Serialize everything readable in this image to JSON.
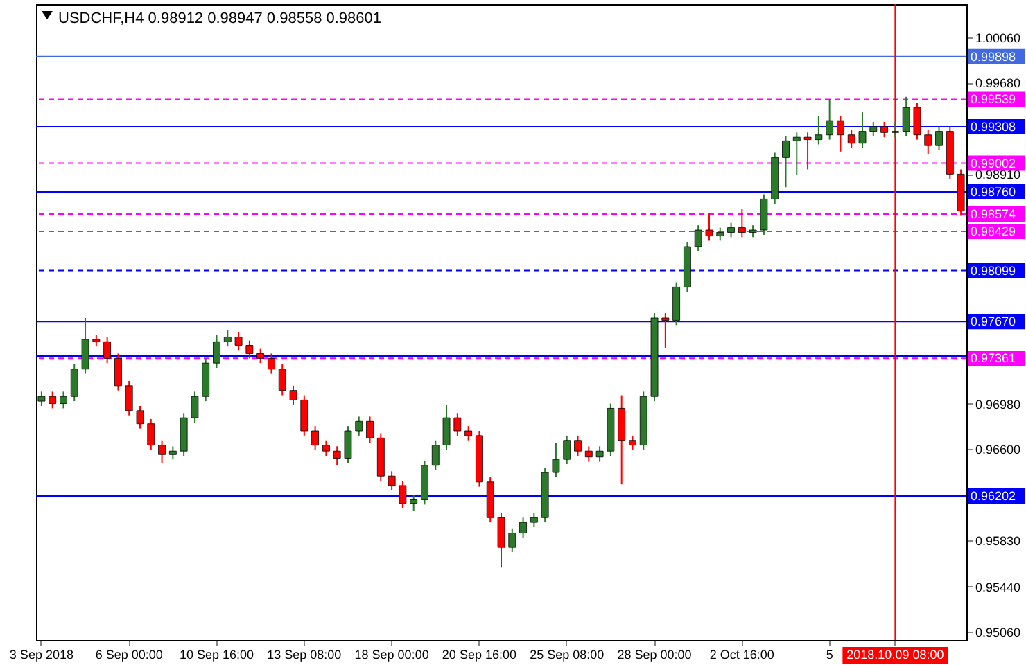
{
  "chart_data": {
    "type": "candlestick",
    "title": "USDCHF,H4  0.98912 0.98947 0.98558 0.98601",
    "categories": [
      "3 Sep 2018",
      null,
      null,
      null,
      null,
      null,
      null,
      null,
      "6 Sep 00:00",
      null,
      null,
      null,
      null,
      null,
      null,
      null,
      "10 Sep 16:00",
      null,
      null,
      null,
      null,
      null,
      null,
      null,
      "13 Sep 08:00",
      null,
      null,
      null,
      null,
      null,
      null,
      null,
      "18 Sep 00:00",
      null,
      null,
      null,
      null,
      null,
      null,
      null,
      "20 Sep 16:00",
      null,
      null,
      null,
      null,
      null,
      null,
      null,
      "25 Sep 08:00",
      null,
      null,
      null,
      null,
      null,
      null,
      null,
      "28 Sep 00:00",
      null,
      null,
      null,
      null,
      null,
      null,
      null,
      "2 Oct 16:00",
      null,
      null,
      null,
      null,
      null,
      null,
      null,
      "5",
      null,
      null,
      null,
      null,
      null,
      "2018.10.09 08:00",
      null,
      null,
      null,
      null,
      null,
      null
    ],
    "ohlc": [
      [
        0.97,
        0.9708,
        0.9696,
        0.9704
      ],
      [
        0.9704,
        0.9708,
        0.9694,
        0.9698
      ],
      [
        0.9698,
        0.9708,
        0.9694,
        0.9704
      ],
      [
        0.9704,
        0.9731,
        0.97,
        0.9727
      ],
      [
        0.9727,
        0.977,
        0.9723,
        0.9752
      ],
      [
        0.9752,
        0.9756,
        0.9746,
        0.975
      ],
      [
        0.975,
        0.9754,
        0.9732,
        0.9736
      ],
      [
        0.9736,
        0.974,
        0.9709,
        0.9713
      ],
      [
        0.9713,
        0.9717,
        0.9688,
        0.9692
      ],
      [
        0.9692,
        0.9696,
        0.9677,
        0.9681
      ],
      [
        0.9681,
        0.9685,
        0.9659,
        0.9663
      ],
      [
        0.9663,
        0.9667,
        0.9648,
        0.9655
      ],
      [
        0.9655,
        0.9662,
        0.9651,
        0.9658
      ],
      [
        0.9658,
        0.969,
        0.9654,
        0.9686
      ],
      [
        0.9686,
        0.9708,
        0.9682,
        0.9704
      ],
      [
        0.9704,
        0.9736,
        0.97,
        0.9732
      ],
      [
        0.9732,
        0.9756,
        0.9728,
        0.975
      ],
      [
        0.975,
        0.976,
        0.9746,
        0.9754
      ],
      [
        0.9754,
        0.9758,
        0.9743,
        0.9747
      ],
      [
        0.9747,
        0.9751,
        0.9736,
        0.974
      ],
      [
        0.974,
        0.9744,
        0.9732,
        0.9736
      ],
      [
        0.9736,
        0.974,
        0.9723,
        0.9727
      ],
      [
        0.9727,
        0.9731,
        0.9705,
        0.9709
      ],
      [
        0.9709,
        0.9713,
        0.9697,
        0.9701
      ],
      [
        0.9701,
        0.9705,
        0.9671,
        0.9675
      ],
      [
        0.9675,
        0.9679,
        0.9659,
        0.9663
      ],
      [
        0.9663,
        0.9667,
        0.9654,
        0.9658
      ],
      [
        0.9658,
        0.9662,
        0.9646,
        0.9652
      ],
      [
        0.9652,
        0.9679,
        0.9648,
        0.9675
      ],
      [
        0.9675,
        0.9687,
        0.9671,
        0.9683
      ],
      [
        0.9683,
        0.9687,
        0.9665,
        0.9669
      ],
      [
        0.9669,
        0.9673,
        0.9633,
        0.9637
      ],
      [
        0.9637,
        0.9641,
        0.9625,
        0.9629
      ],
      [
        0.9629,
        0.9633,
        0.961,
        0.9614
      ],
      [
        0.9614,
        0.9621,
        0.9608,
        0.9617
      ],
      [
        0.9617,
        0.965,
        0.9613,
        0.9646
      ],
      [
        0.9646,
        0.9667,
        0.9642,
        0.9663
      ],
      [
        0.9663,
        0.9697,
        0.9659,
        0.9686
      ],
      [
        0.9686,
        0.969,
        0.9671,
        0.9675
      ],
      [
        0.9675,
        0.9679,
        0.9667,
        0.9671
      ],
      [
        0.9671,
        0.9675,
        0.9628,
        0.9632
      ],
      [
        0.9632,
        0.9636,
        0.9598,
        0.9602
      ],
      [
        0.9602,
        0.9606,
        0.956,
        0.9577
      ],
      [
        0.9577,
        0.9593,
        0.9573,
        0.9589
      ],
      [
        0.9589,
        0.9602,
        0.9585,
        0.9598
      ],
      [
        0.9598,
        0.9606,
        0.9594,
        0.9602
      ],
      [
        0.9602,
        0.9644,
        0.9598,
        0.964
      ],
      [
        0.964,
        0.9665,
        0.9636,
        0.9651
      ],
      [
        0.9651,
        0.9671,
        0.9647,
        0.9667
      ],
      [
        0.9667,
        0.9671,
        0.9654,
        0.9658
      ],
      [
        0.9658,
        0.9662,
        0.9649,
        0.9653
      ],
      [
        0.9653,
        0.9662,
        0.9649,
        0.9658
      ],
      [
        0.9658,
        0.9698,
        0.9654,
        0.9694
      ],
      [
        0.9694,
        0.9705,
        0.963,
        0.9667
      ],
      [
        0.9667,
        0.9671,
        0.9659,
        0.9663
      ],
      [
        0.9663,
        0.9708,
        0.9659,
        0.9704
      ],
      [
        0.9704,
        0.9774,
        0.97,
        0.977
      ],
      [
        0.977,
        0.9774,
        0.9745,
        0.9768
      ],
      [
        0.9768,
        0.98,
        0.9764,
        0.9796
      ],
      [
        0.9796,
        0.9834,
        0.9792,
        0.983
      ],
      [
        0.983,
        0.9848,
        0.9826,
        0.9844
      ],
      [
        0.9844,
        0.9858,
        0.9835,
        0.9839
      ],
      [
        0.9839,
        0.9846,
        0.9835,
        0.9842
      ],
      [
        0.9842,
        0.985,
        0.9838,
        0.9846
      ],
      [
        0.9846,
        0.9862,
        0.9838,
        0.9842
      ],
      [
        0.9842,
        0.9848,
        0.9838,
        0.9844
      ],
      [
        0.9844,
        0.9874,
        0.984,
        0.987
      ],
      [
        0.987,
        0.9909,
        0.9866,
        0.9905
      ],
      [
        0.9905,
        0.9923,
        0.988,
        0.9919
      ],
      [
        0.9919,
        0.9926,
        0.989,
        0.9922
      ],
      [
        0.9922,
        0.9926,
        0.9895,
        0.992
      ],
      [
        0.992,
        0.994,
        0.9916,
        0.9924
      ],
      [
        0.9924,
        0.9954,
        0.992,
        0.9936
      ],
      [
        0.9936,
        0.994,
        0.991,
        0.9924
      ],
      [
        0.9924,
        0.9928,
        0.9913,
        0.9917
      ],
      [
        0.9917,
        0.9943,
        0.9913,
        0.9927
      ],
      [
        0.9927,
        0.9935,
        0.9923,
        0.9931
      ],
      [
        0.9931,
        0.9935,
        0.9922,
        0.9926
      ],
      [
        0.9926,
        0.9935,
        0.9922,
        0.9927
      ],
      [
        0.9927,
        0.9956,
        0.9923,
        0.9947
      ],
      [
        0.9947,
        0.9951,
        0.992,
        0.9924
      ],
      [
        0.9924,
        0.9928,
        0.9908,
        0.9915
      ],
      [
        0.9915,
        0.9931,
        0.9911,
        0.9927
      ],
      [
        0.9927,
        0.9931,
        0.9887,
        0.9891
      ],
      [
        0.9891,
        0.9895,
        0.9856,
        0.986
      ]
    ],
    "ylim": [
      0.9499,
      1.0034
    ],
    "yticks": [
      {
        "value": 1.0006,
        "label": "1.00060"
      },
      {
        "value": 0.9968,
        "label": "0.99680"
      },
      {
        "value": 0.9891,
        "label": "0.98910"
      },
      {
        "value": 0.9698,
        "label": "0.96980"
      },
      {
        "value": 0.966,
        "label": "0.96600"
      },
      {
        "value": 0.9583,
        "label": "0.95830"
      },
      {
        "value": 0.9544,
        "label": "0.95440"
      },
      {
        "value": 0.9506,
        "label": "0.95060"
      }
    ],
    "grid": false,
    "ref_lines": [
      {
        "axis": "y",
        "value": 0.99898,
        "label": "0.99898",
        "color": "#4169e1",
        "line_style": "solid"
      },
      {
        "axis": "y",
        "value": 0.99539,
        "label": "0.99539",
        "color": "#ff00ff",
        "line_style": "dashed"
      },
      {
        "axis": "y",
        "value": 0.99308,
        "label": "0.99308",
        "color": "#0000ff",
        "line_style": "solid"
      },
      {
        "axis": "y",
        "value": 0.99002,
        "label": "0.99002",
        "color": "#ff00ff",
        "line_style": "dashed"
      },
      {
        "axis": "y",
        "value": 0.9876,
        "label": "0.98760",
        "color": "#0000ff",
        "line_style": "solid"
      },
      {
        "axis": "y",
        "value": 0.98574,
        "label": "0.98574",
        "color": "#ff00ff",
        "line_style": "dashed"
      },
      {
        "axis": "y",
        "value": 0.98429,
        "label": "0.98429",
        "color": "#ff00ff",
        "line_style": "dashed"
      },
      {
        "axis": "y",
        "value": 0.98099,
        "label": "0.98099",
        "color": "#0000ff",
        "line_style": "dashed"
      },
      {
        "axis": "y",
        "value": 0.9767,
        "label": "0.97670",
        "color": "#0000ff",
        "line_style": "solid"
      },
      {
        "axis": "y",
        "value": 0.9738,
        "label": null,
        "color": "#0000ff",
        "line_style": "solid"
      },
      {
        "axis": "y",
        "value": 0.97361,
        "label": "0.97361",
        "color": "#ff00ff",
        "line_style": "dashed"
      },
      {
        "axis": "y",
        "value": 0.96202,
        "label": "0.96202",
        "color": "#0000ff",
        "line_style": "solid"
      },
      {
        "axis": "x",
        "value": "2018.10.09 08:00",
        "label": null,
        "color": "#ff0000",
        "line_style": "solid"
      }
    ]
  }
}
